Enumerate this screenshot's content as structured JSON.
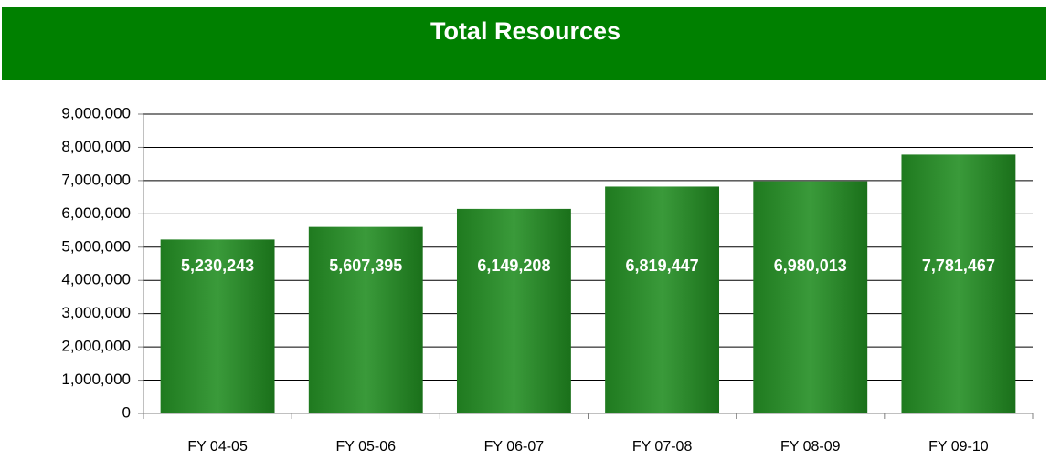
{
  "chart_data": {
    "type": "bar",
    "title": "Total Resources",
    "categories": [
      "FY 04-05",
      "FY 05-06",
      "FY 06-07",
      "FY 07-08",
      "FY 08-09",
      "FY 09-10"
    ],
    "values": [
      5230243,
      5607395,
      6149208,
      6819447,
      6980013,
      7781467
    ],
    "value_labels": [
      "5,230,243",
      "5,607,395",
      "6,149,208",
      "6,819,447",
      "6,980,013",
      "7,781,467"
    ],
    "color": "#3a9a3a",
    "ylim": [
      0,
      9000000
    ],
    "yticks": [
      0,
      {
        "value": 1000000,
        "label": "1,000,000"
      },
      {
        "value": 2000000,
        "label": "2,000,000"
      },
      {
        "value": 3000000,
        "label": "3,000,000"
      },
      {
        "value": 4000000,
        "label": "4,000,000"
      },
      {
        "value": 5000000,
        "label": "5,000,000"
      },
      {
        "value": 6000000,
        "label": "6,000,000"
      },
      {
        "value": 7000000,
        "label": "7,000,000"
      },
      {
        "value": 8000000,
        "label": "8,000,000"
      },
      {
        "value": 9000000,
        "label": "9,000,000"
      }
    ],
    "grid": true
  }
}
